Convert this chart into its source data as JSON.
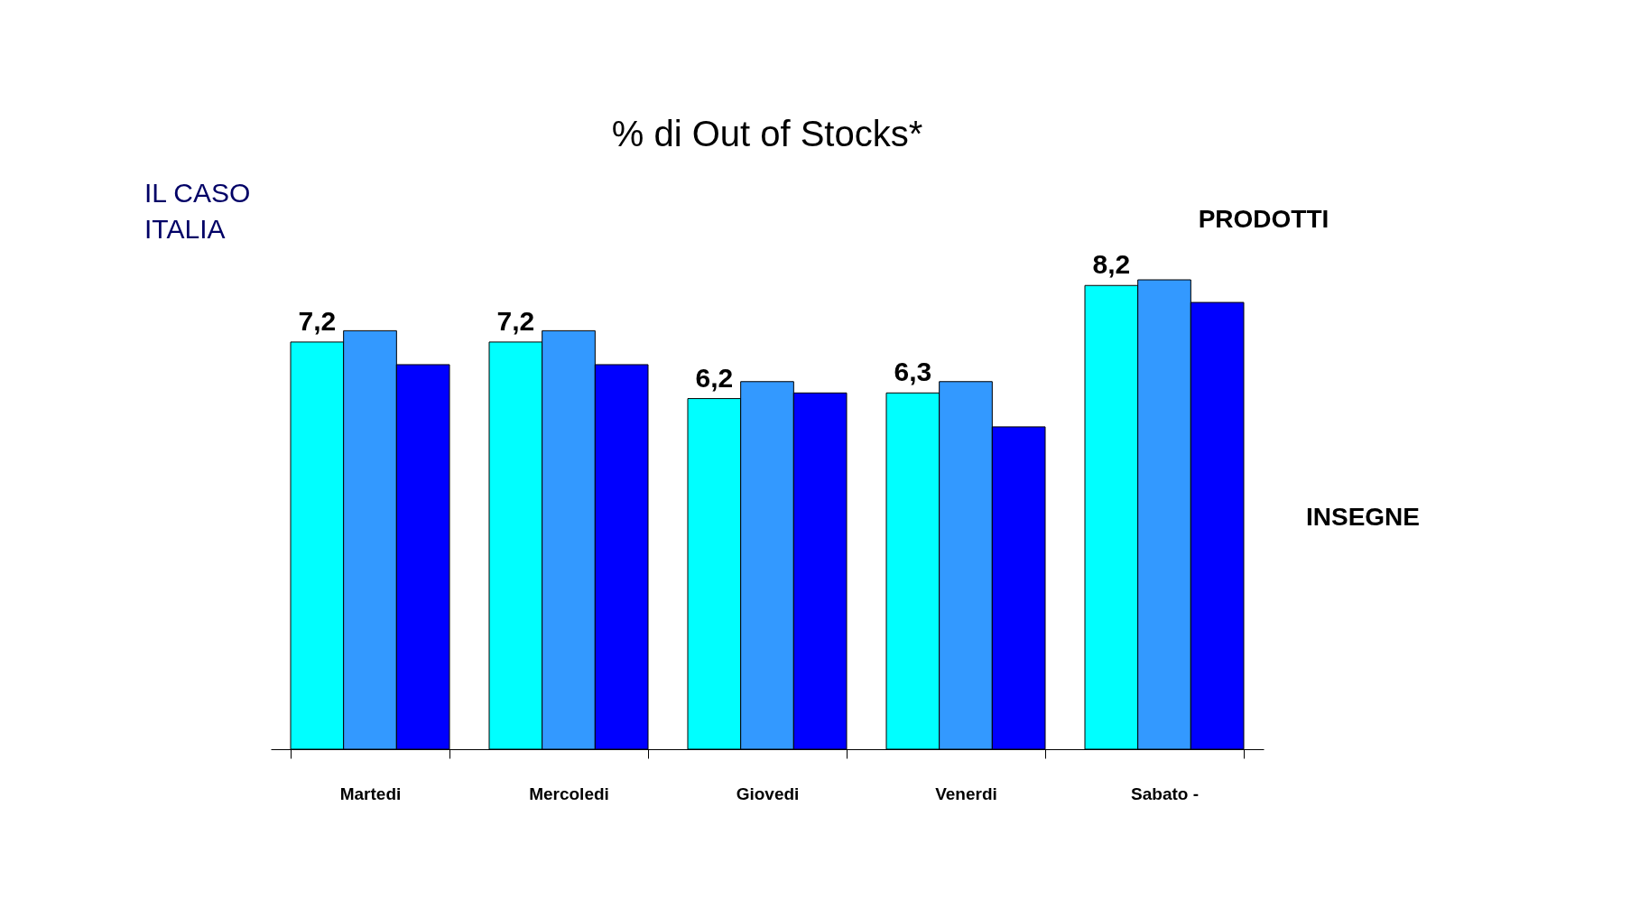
{
  "chart_data": {
    "type": "bar",
    "title": "% di Out of Stocks*",
    "categories": [
      "Martedi",
      "Mercoledi",
      "Giovedi",
      "Venerdi",
      "Sabato -"
    ],
    "series": [
      {
        "color": "#00ffff",
        "values": [
          7.2,
          7.2,
          6.2,
          6.3,
          8.2
        ],
        "value_labels": [
          "7,2",
          "7,2",
          "6,2",
          "6,3",
          "8,2"
        ]
      },
      {
        "color": "#3399ff",
        "values": [
          7.4,
          7.4,
          6.5,
          6.5,
          8.3
        ]
      },
      {
        "color": "#0000ff",
        "values": [
          6.8,
          6.8,
          6.3,
          5.7,
          7.9
        ]
      }
    ],
    "tick_labels": "x",
    "grid": false,
    "legend": false,
    "annotations": [
      "IL CASO ITALIA",
      "PRODOTTI",
      "INSEGNE"
    ]
  }
}
